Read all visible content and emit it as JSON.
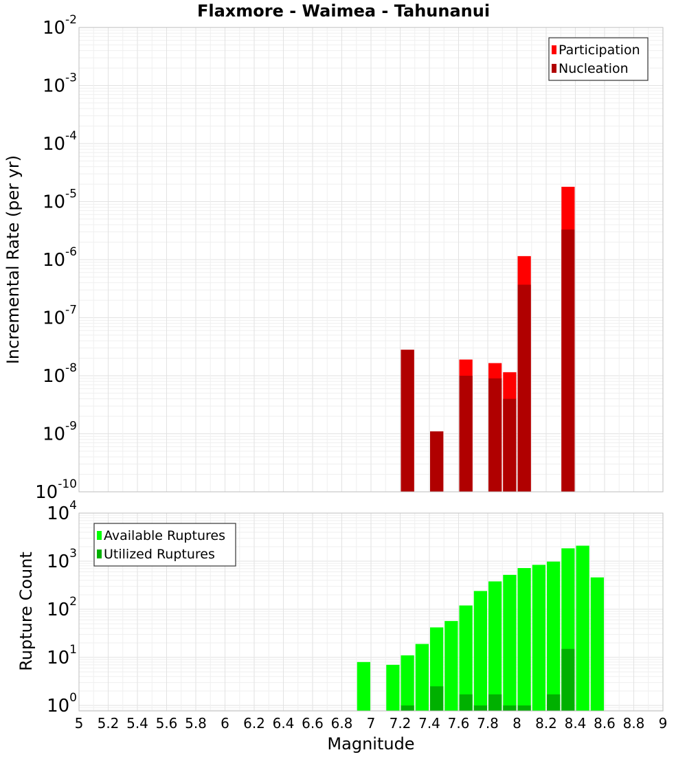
{
  "chart_data": [
    {
      "type": "bar",
      "title": "Flaxmore - Waimea - Tahunanui",
      "xlabel": "Magnitude",
      "ylabel": "Incremental Rate (per yr)",
      "yscale": "log",
      "xlim": [
        5,
        9
      ],
      "ylim": [
        1e-10,
        0.01
      ],
      "bin_width": 0.1,
      "y_tick_labels": [
        "10-10",
        "10-9",
        "10-8",
        "10-7",
        "10-6",
        "10-5",
        "10-4",
        "10-3",
        "10-2"
      ],
      "legend": {
        "position": "top-right",
        "entries": [
          "Participation",
          "Nucleation"
        ]
      },
      "grid": true,
      "series": [
        {
          "name": "Participation",
          "color": "#ff0000",
          "points": [
            {
              "x": 7.25,
              "y": 2.8e-08
            },
            {
              "x": 7.45,
              "y": 1.1e-09
            },
            {
              "x": 7.65,
              "y": 1.9e-08
            },
            {
              "x": 7.85,
              "y": 1.65e-08
            },
            {
              "x": 7.95,
              "y": 1.15e-08
            },
            {
              "x": 8.05,
              "y": 1.15e-06
            },
            {
              "x": 8.35,
              "y": 1.8e-05
            }
          ]
        },
        {
          "name": "Nucleation",
          "color": "#b00000",
          "points": [
            {
              "x": 7.25,
              "y": 2.8e-08
            },
            {
              "x": 7.45,
              "y": 1.1e-09
            },
            {
              "x": 7.65,
              "y": 1e-08
            },
            {
              "x": 7.85,
              "y": 9e-09
            },
            {
              "x": 7.95,
              "y": 4e-09
            },
            {
              "x": 8.05,
              "y": 3.7e-07
            },
            {
              "x": 8.35,
              "y": 3.3e-06
            }
          ]
        }
      ]
    },
    {
      "type": "bar",
      "xlabel": "Magnitude",
      "ylabel": "Rupture Count",
      "yscale": "log",
      "xlim": [
        5,
        9
      ],
      "ylim": [
        0.77,
        10000
      ],
      "bin_width": 0.1,
      "x_ticks": [
        "5",
        "5.2",
        "5.4",
        "5.6",
        "5.8",
        "6",
        "6.2",
        "6.4",
        "6.6",
        "6.8",
        "7",
        "7.2",
        "7.4",
        "7.6",
        "7.8",
        "8",
        "8.2",
        "8.4",
        "8.6",
        "8.8",
        "9"
      ],
      "y_tick_labels": [
        "100",
        "101",
        "102",
        "103",
        "104"
      ],
      "legend": {
        "position": "top-left",
        "entries": [
          "Available Ruptures",
          "Utilized Ruptures"
        ]
      },
      "grid": true,
      "series": [
        {
          "name": "Available Ruptures",
          "color": "#00ff00",
          "points": [
            {
              "x": 6.95,
              "y": 8
            },
            {
              "x": 7.15,
              "y": 7
            },
            {
              "x": 7.25,
              "y": 11
            },
            {
              "x": 7.35,
              "y": 19
            },
            {
              "x": 7.45,
              "y": 42
            },
            {
              "x": 7.55,
              "y": 57
            },
            {
              "x": 7.65,
              "y": 120
            },
            {
              "x": 7.75,
              "y": 240
            },
            {
              "x": 7.85,
              "y": 380
            },
            {
              "x": 7.95,
              "y": 520
            },
            {
              "x": 8.05,
              "y": 720
            },
            {
              "x": 8.15,
              "y": 840
            },
            {
              "x": 8.25,
              "y": 980
            },
            {
              "x": 8.35,
              "y": 1850
            },
            {
              "x": 8.45,
              "y": 2100
            },
            {
              "x": 8.55,
              "y": 460
            }
          ]
        },
        {
          "name": "Utilized Ruptures",
          "color": "#00b000",
          "points": [
            {
              "x": 7.25,
              "y": 1
            },
            {
              "x": 7.45,
              "y": 2.5
            },
            {
              "x": 7.65,
              "y": 1.7
            },
            {
              "x": 7.75,
              "y": 1
            },
            {
              "x": 7.85,
              "y": 1.7
            },
            {
              "x": 7.95,
              "y": 1
            },
            {
              "x": 8.05,
              "y": 1
            },
            {
              "x": 8.25,
              "y": 1.7
            },
            {
              "x": 8.35,
              "y": 15
            }
          ]
        }
      ]
    }
  ]
}
